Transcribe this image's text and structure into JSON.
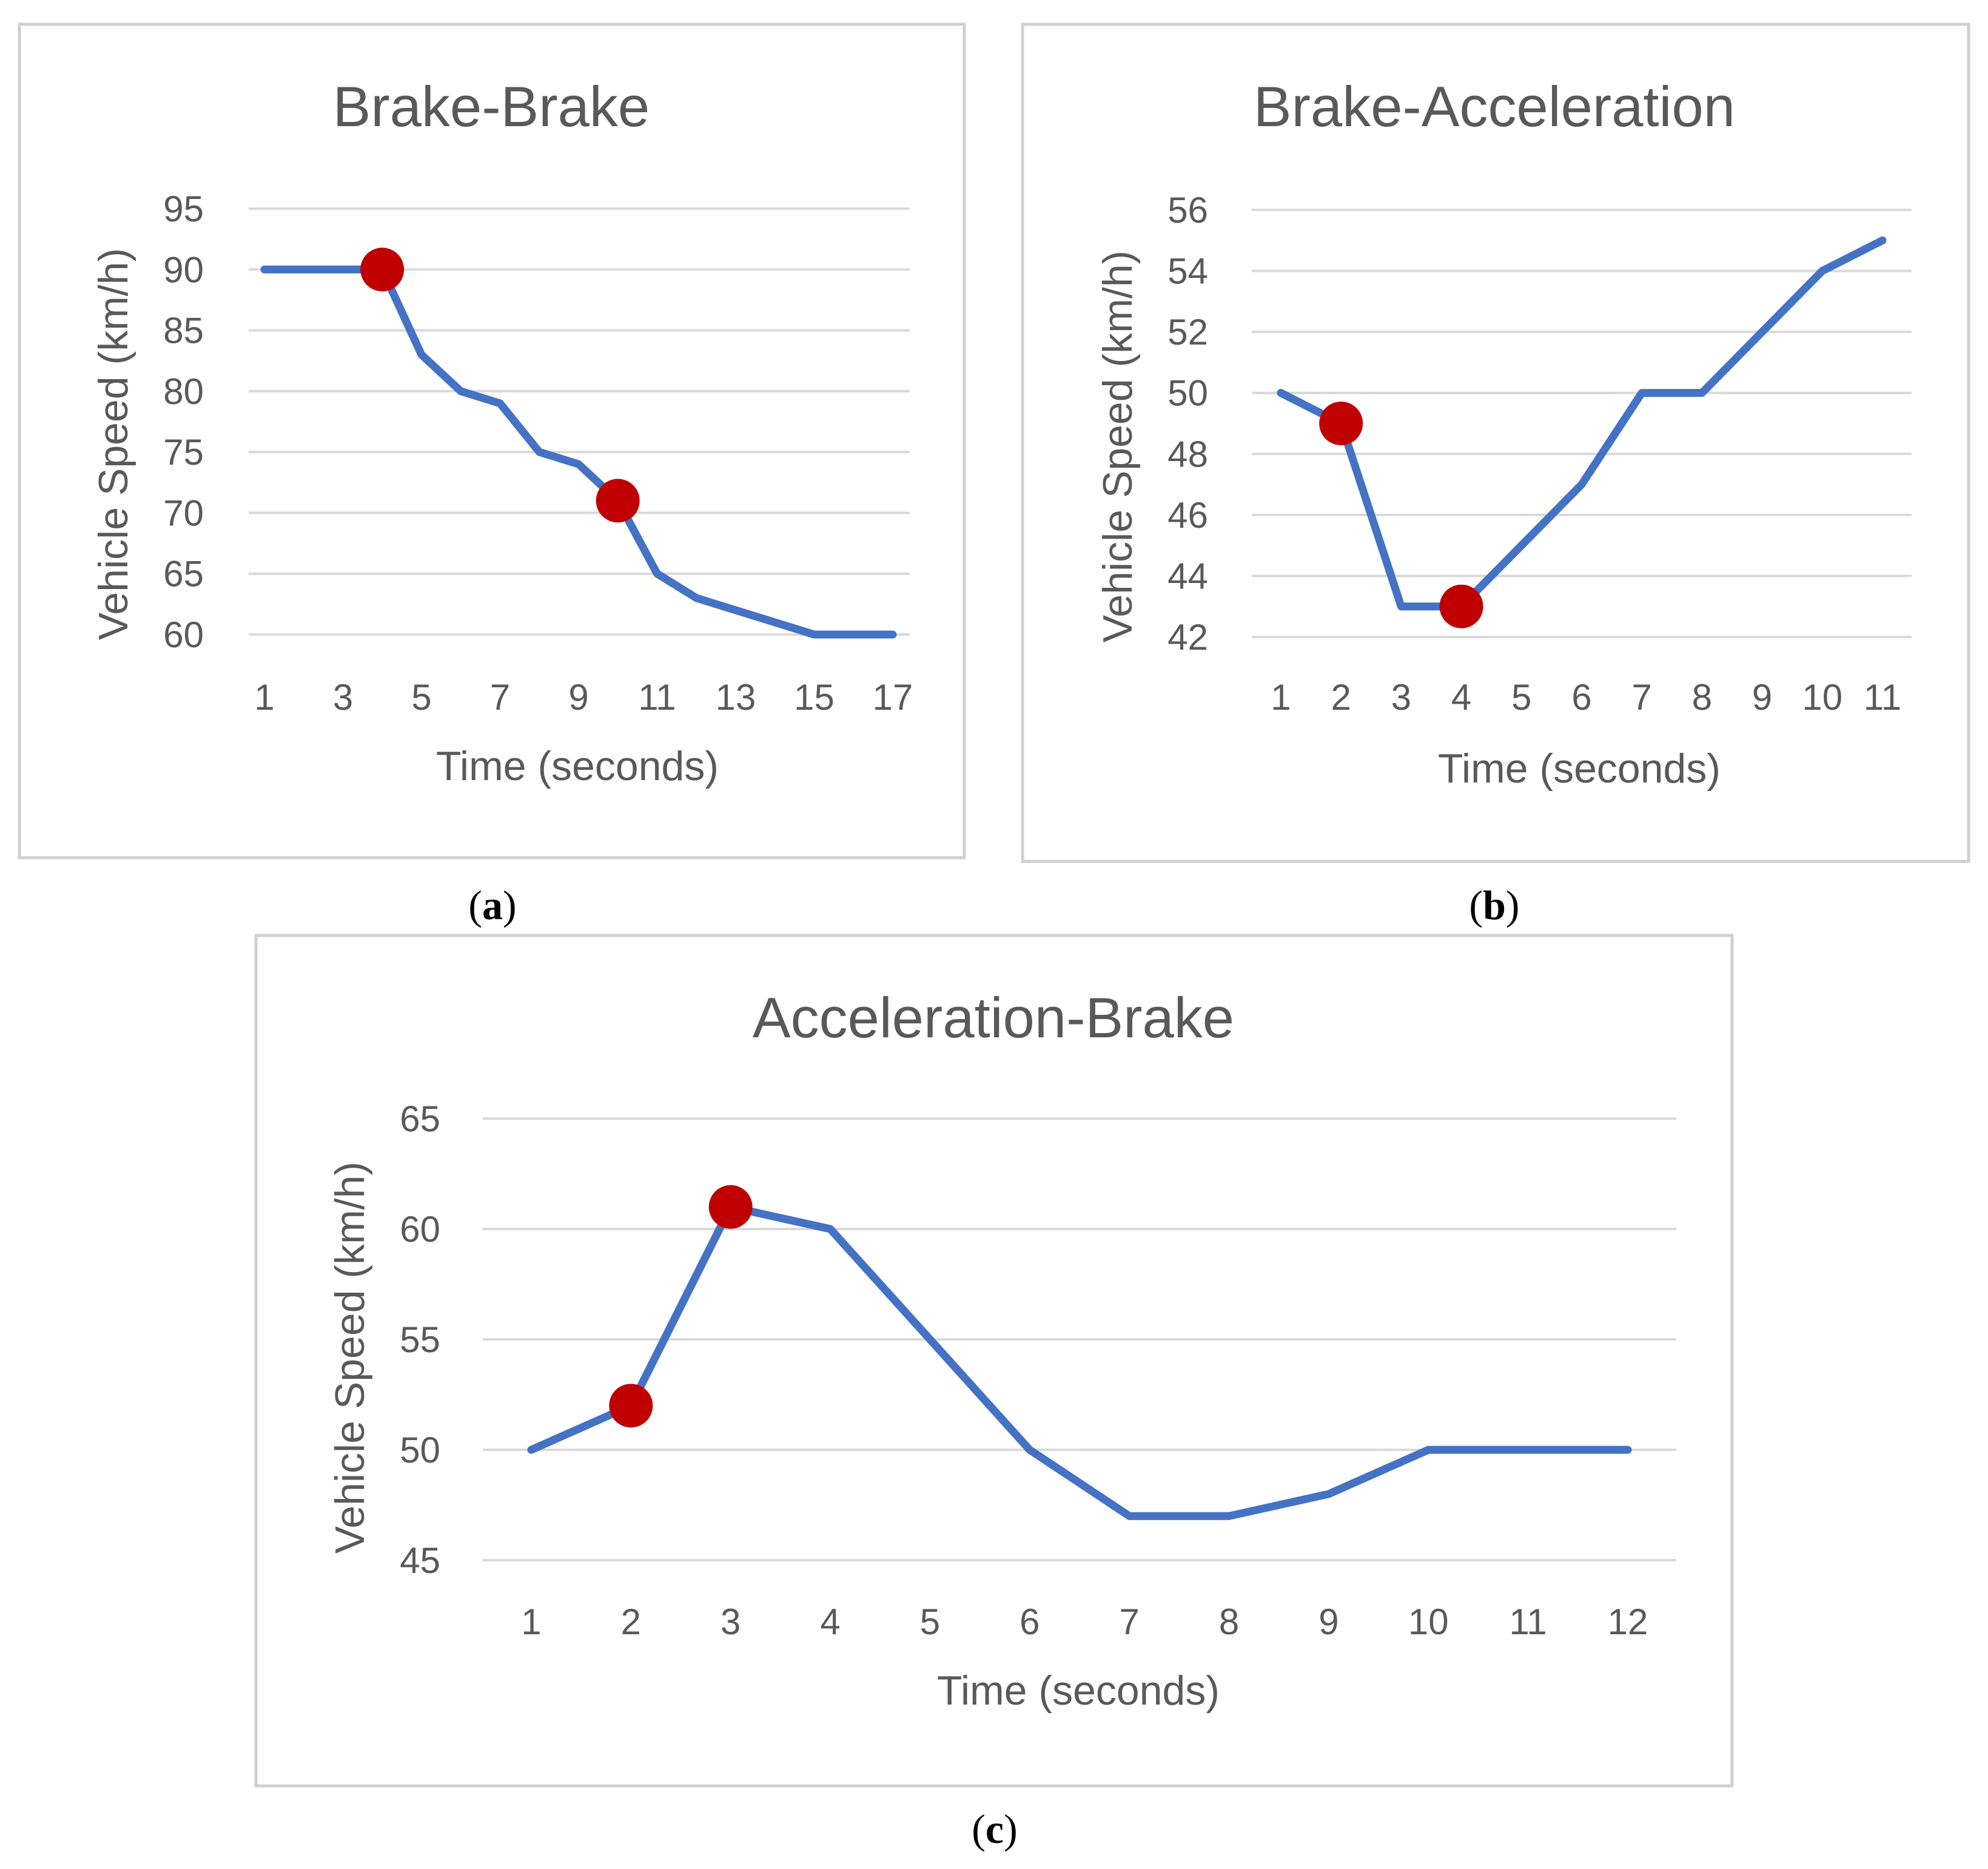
{
  "chart_data": [
    {
      "type": "line",
      "panel": "a",
      "caption_open": "(",
      "caption_letter": "a",
      "caption_close": ")",
      "title": "Brake-Brake",
      "xlabel": "Time (seconds)",
      "ylabel": "Vehicle Speed (km/h)",
      "ylim": [
        60,
        95
      ],
      "yticks": [
        "60",
        "65",
        "70",
        "75",
        "80",
        "85",
        "90",
        "95"
      ],
      "x_tick_labels": [
        "1",
        "3",
        "5",
        "7",
        "9",
        "11",
        "13",
        "15",
        "17"
      ],
      "x": [
        1,
        2,
        3,
        4,
        5,
        6,
        7,
        8,
        9,
        10,
        11,
        12,
        13,
        14,
        15,
        16,
        17
      ],
      "series": [
        {
          "name": "Vehicle Speed",
          "color": "#4472c4",
          "values": [
            90,
            90,
            90,
            90,
            83,
            80,
            79,
            75,
            74,
            71,
            65,
            63,
            62,
            61,
            60,
            60,
            60
          ]
        }
      ],
      "markers": [
        {
          "x": 4,
          "y": 90
        },
        {
          "x": 10,
          "y": 71
        }
      ],
      "marker_color": "#c00000",
      "grid": true
    },
    {
      "type": "line",
      "panel": "b",
      "caption_open": "(",
      "caption_letter": "b",
      "caption_close": ")",
      "title": "Brake-Acceleration",
      "xlabel": "Time (seconds)",
      "ylabel": "Vehicle Speed (km/h)",
      "ylim": [
        42,
        56
      ],
      "yticks": [
        "42",
        "44",
        "46",
        "48",
        "50",
        "52",
        "54",
        "56"
      ],
      "x_tick_labels": [
        "1",
        "2",
        "3",
        "4",
        "5",
        "6",
        "7",
        "8",
        "9",
        "10",
        "11"
      ],
      "x": [
        1,
        2,
        3,
        4,
        5,
        6,
        7,
        8,
        9,
        10,
        11
      ],
      "series": [
        {
          "name": "Vehicle Speed",
          "color": "#4472c4",
          "values": [
            50,
            49,
            43,
            43,
            45,
            47,
            50,
            50,
            52,
            54,
            55
          ]
        }
      ],
      "markers": [
        {
          "x": 2,
          "y": 49
        },
        {
          "x": 4,
          "y": 43
        }
      ],
      "marker_color": "#c00000",
      "grid": true
    },
    {
      "type": "line",
      "panel": "c",
      "caption_open": "(",
      "caption_letter": "c",
      "caption_close": ")",
      "title": "Acceleration-Brake",
      "xlabel": "Time (seconds)",
      "ylabel": "Vehicle Speed (km/h)",
      "ylim": [
        45,
        65
      ],
      "yticks": [
        "45",
        "50",
        "55",
        "60",
        "65"
      ],
      "x_tick_labels": [
        "1",
        "2",
        "3",
        "4",
        "5",
        "6",
        "7",
        "8",
        "9",
        "10",
        "11",
        "12"
      ],
      "x": [
        1,
        2,
        3,
        4,
        5,
        6,
        7,
        8,
        9,
        10,
        11,
        12
      ],
      "series": [
        {
          "name": "Vehicle Speed",
          "color": "#4472c4",
          "values": [
            50,
            52,
            61,
            60,
            55,
            50,
            47,
            47,
            48,
            50,
            50,
            50
          ]
        }
      ],
      "markers": [
        {
          "x": 2,
          "y": 52
        },
        {
          "x": 3,
          "y": 61
        }
      ],
      "marker_color": "#c00000",
      "grid": true
    }
  ]
}
